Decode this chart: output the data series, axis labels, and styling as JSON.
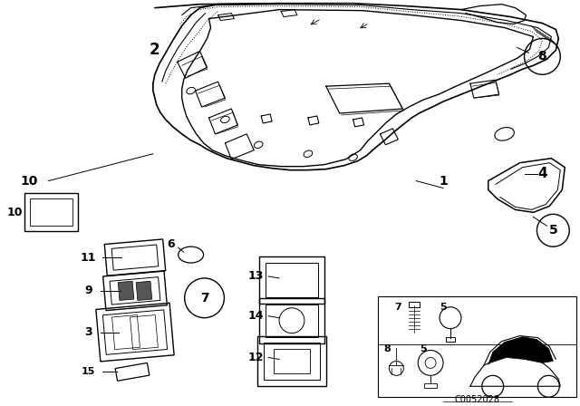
{
  "bg_color": "#ffffff",
  "line_color": "#000000",
  "fig_width": 6.4,
  "fig_height": 4.48,
  "dpi": 100,
  "code_text": "C0052028"
}
